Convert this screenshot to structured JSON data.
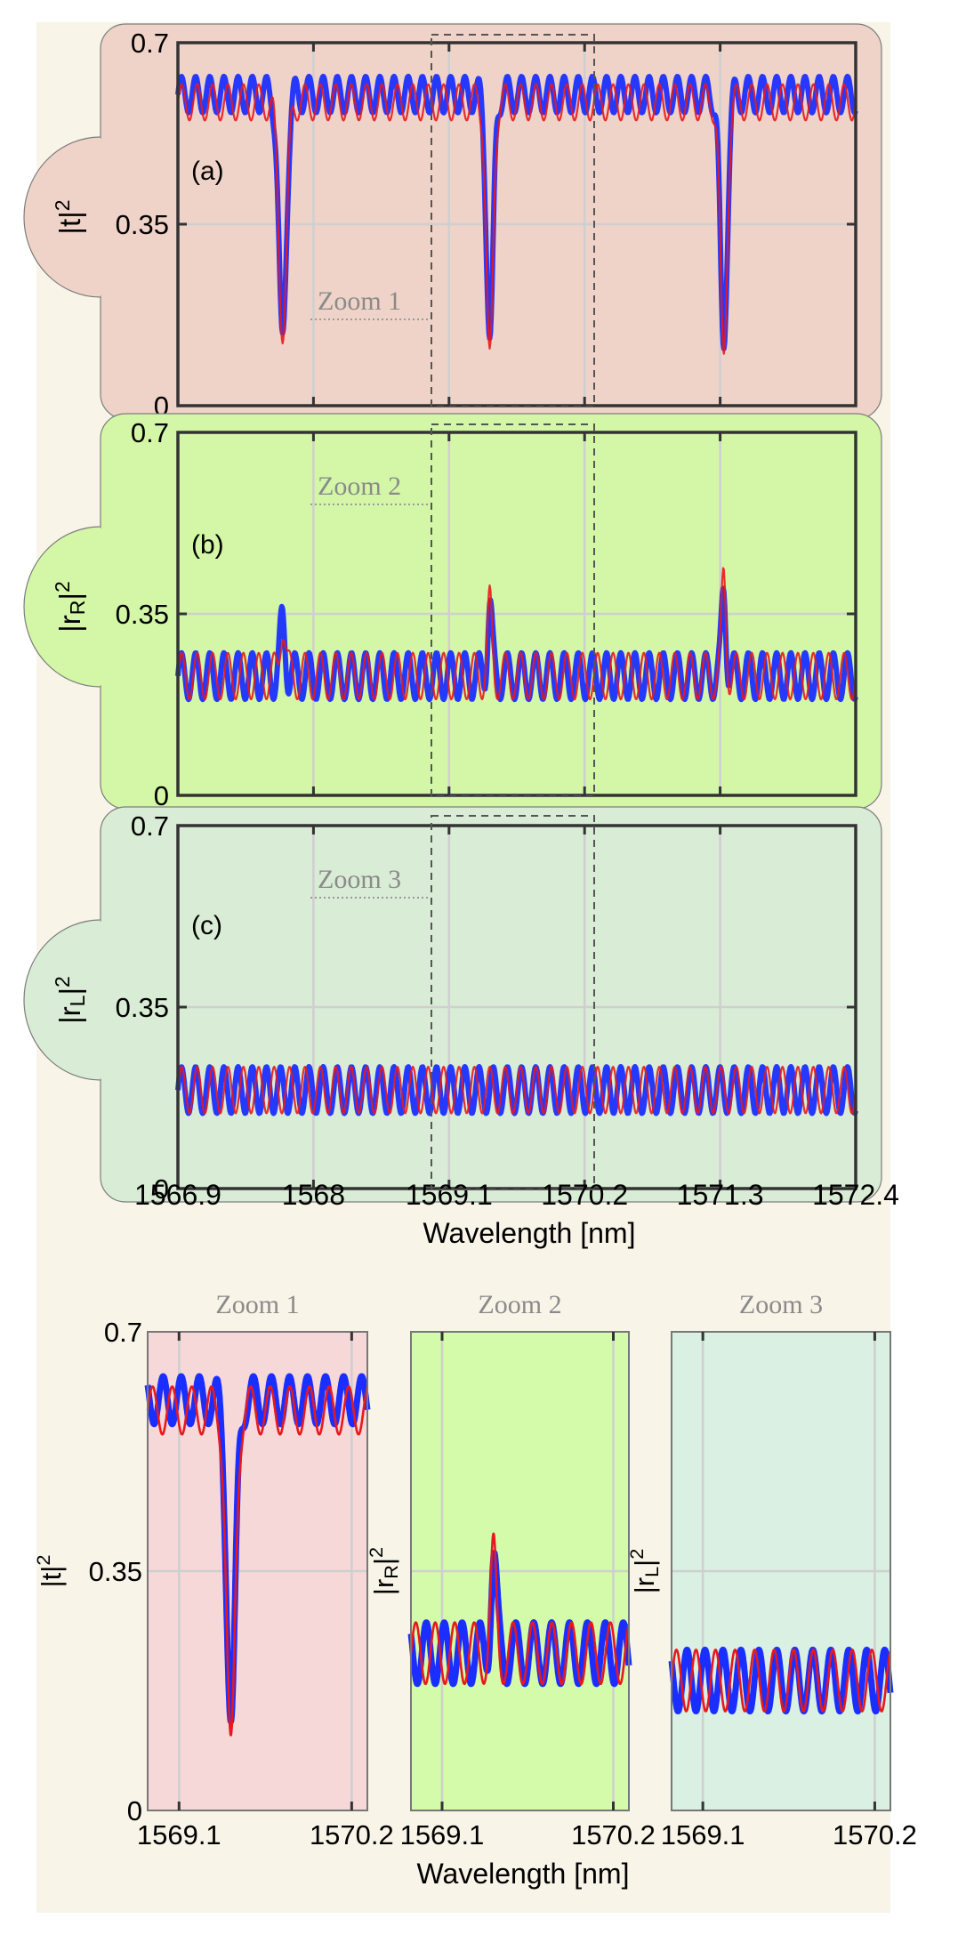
{
  "colors": {
    "page_bg": "#f8f4e8",
    "panel_a_bg": "#efd3c8",
    "panel_b_bg": "#d3f7a6",
    "panel_c_bg": "#d9ecd5",
    "zoom1_bg": "#f6d8d8",
    "zoom2_bg": "#d3fba9",
    "zoom3_bg": "#d9f0e3",
    "measured": "#1a2fff",
    "simulated": "#e8191c",
    "frame": "#333333"
  },
  "chart_data": [
    {
      "type": "line",
      "panel_label": "(a)",
      "ylabel_base": "|t|",
      "ylabel_sub": "",
      "ylabel_sup": "2",
      "ylim": [
        0,
        0.7
      ],
      "xlim": [
        1566.9,
        1572.4
      ],
      "yticks": [
        "0",
        "0.35",
        "0.7"
      ],
      "xticks": [
        "1566.9",
        "1568",
        "1569.1",
        "1570.2",
        "1571.3",
        "1572.4"
      ],
      "grid": true,
      "zoom_label": "Zoom 1",
      "zoom_range": [
        1568.9,
        1570.2
      ],
      "series": [
        {
          "color": "blue",
          "baseline": 0.6,
          "amplitude": 0.035,
          "period_nm": 0.115,
          "dips": [
            [
              1567.75,
              0.14,
              0.045
            ],
            [
              1569.43,
              0.13,
              0.04
            ],
            [
              1571.33,
              0.11,
              0.04
            ]
          ]
        },
        {
          "color": "red",
          "baseline": 0.585,
          "amplitude": 0.035,
          "period_nm": 0.125,
          "dips": [
            [
              1567.75,
              0.12,
              0.045
            ],
            [
              1569.43,
              0.11,
              0.04
            ],
            [
              1571.33,
              0.1,
              0.04
            ]
          ]
        }
      ]
    },
    {
      "type": "line",
      "panel_label": "(b)",
      "ylabel_base": "|r",
      "ylabel_sub": "R",
      "ylabel_sup": "2",
      "ylim": [
        0,
        0.7
      ],
      "xlim": [
        1566.9,
        1572.4
      ],
      "yticks": [
        "0",
        "0.35",
        "0.7"
      ],
      "xticks": [
        "1566.9",
        "1568",
        "1569.1",
        "1570.2",
        "1571.3",
        "1572.4"
      ],
      "grid": true,
      "zoom_label": "Zoom 2",
      "zoom_range": [
        1568.9,
        1570.2
      ],
      "series": [
        {
          "color": "blue",
          "baseline": 0.23,
          "amplitude": 0.045,
          "period_nm": 0.115,
          "peaks": [
            [
              1567.75,
              0.33,
              0.03
            ],
            [
              1569.43,
              0.37,
              0.025
            ],
            [
              1571.33,
              0.4,
              0.025
            ]
          ]
        },
        {
          "color": "red",
          "baseline": 0.23,
          "amplitude": 0.045,
          "period_nm": 0.125,
          "peaks": [
            [
              1567.75,
              0.34,
              0.03
            ],
            [
              1569.43,
              0.36,
              0.025
            ],
            [
              1571.33,
              0.42,
              0.025
            ]
          ]
        }
      ]
    },
    {
      "type": "line",
      "panel_label": "(c)",
      "ylabel_base": "|r",
      "ylabel_sub": "L",
      "ylabel_sup": "2",
      "ylim": [
        0,
        0.7
      ],
      "xlim": [
        1566.9,
        1572.4
      ],
      "yticks": [
        "0",
        "0.35",
        "0.7"
      ],
      "xticks": [
        "1566.9",
        "1568",
        "1569.1",
        "1570.2",
        "1571.3",
        "1572.4"
      ],
      "xlabel": "Wavelength [nm]",
      "grid": true,
      "zoom_label": "Zoom 3",
      "zoom_range": [
        1568.9,
        1570.2
      ],
      "series": [
        {
          "color": "blue",
          "baseline": 0.19,
          "amplitude": 0.045,
          "period_nm": 0.115
        },
        {
          "color": "red",
          "baseline": 0.19,
          "amplitude": 0.045,
          "period_nm": 0.125
        }
      ]
    },
    {
      "type": "line",
      "title": "Zoom 1",
      "ylabel_base": "|t|",
      "ylabel_sub": "",
      "ylabel_sup": "2",
      "ylim": [
        0,
        0.7
      ],
      "xlim": [
        1568.9,
        1570.3
      ],
      "yticks": [
        "0",
        "0.35",
        "0.7"
      ],
      "xticks": [
        "1569.1",
        "1570.2"
      ],
      "source_panel": 0
    },
    {
      "type": "line",
      "title": "Zoom 2",
      "ylabel_base": "|r",
      "ylabel_sub": "R",
      "ylabel_sup": "2",
      "ylim": [
        0,
        0.7
      ],
      "xlim": [
        1568.9,
        1570.3
      ],
      "yticks": [],
      "xticks": [
        "1569.1",
        "1570.2"
      ],
      "xlabel": "Wavelength [nm]",
      "source_panel": 1
    },
    {
      "type": "line",
      "title": "Zoom 3",
      "ylabel_base": "|r",
      "ylabel_sub": "L",
      "ylabel_sup": "2",
      "ylim": [
        0,
        0.7
      ],
      "xlim": [
        1568.9,
        1570.3
      ],
      "yticks": [],
      "xticks": [
        "1569.1",
        "1570.2"
      ],
      "source_panel": 2
    }
  ]
}
